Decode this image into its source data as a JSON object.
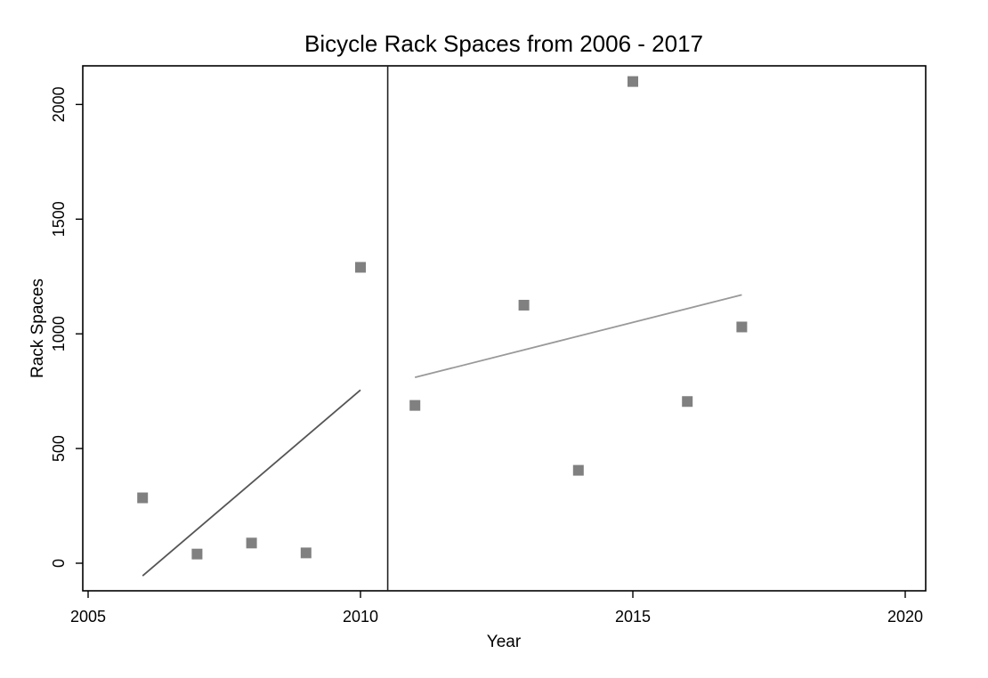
{
  "chart_data": {
    "type": "scatter",
    "title": "Bicycle Rack Spaces from 2006 - 2017",
    "xlabel": "Year",
    "ylabel": "Rack Spaces",
    "xlim": [
      2005,
      2020
    ],
    "ylim": [
      0,
      2000
    ],
    "x_ticks": [
      2005,
      2010,
      2015,
      2020
    ],
    "y_ticks": [
      0,
      500,
      1000,
      1500,
      2000
    ],
    "x_tick_labels": [
      "2005",
      "2010",
      "2015",
      "2020"
    ],
    "y_tick_labels": [
      "0",
      "500",
      "1000",
      "1500",
      "2000"
    ],
    "grid": false,
    "legend": "none",
    "vertical_reference_line": {
      "x": 2010.5
    },
    "points": [
      {
        "x": 2006,
        "y": 285
      },
      {
        "x": 2007,
        "y": 40
      },
      {
        "x": 2008,
        "y": 88
      },
      {
        "x": 2009,
        "y": 45
      },
      {
        "x": 2010,
        "y": 1290
      },
      {
        "x": 2011,
        "y": 688
      },
      {
        "x": 2013,
        "y": 1125
      },
      {
        "x": 2014,
        "y": 405
      },
      {
        "x": 2015,
        "y": 2100
      },
      {
        "x": 2016,
        "y": 705
      },
      {
        "x": 2017,
        "y": 1030
      }
    ],
    "fit_lines": [
      {
        "segment": "pre",
        "x": [
          2006,
          2010
        ],
        "y": [
          -55,
          755
        ],
        "color": "#555555"
      },
      {
        "segment": "post",
        "x": [
          2011,
          2017
        ],
        "y": [
          810,
          1170
        ],
        "color": "#999999"
      }
    ],
    "colors": {
      "marker": "#808080",
      "axis": "#000000"
    }
  }
}
